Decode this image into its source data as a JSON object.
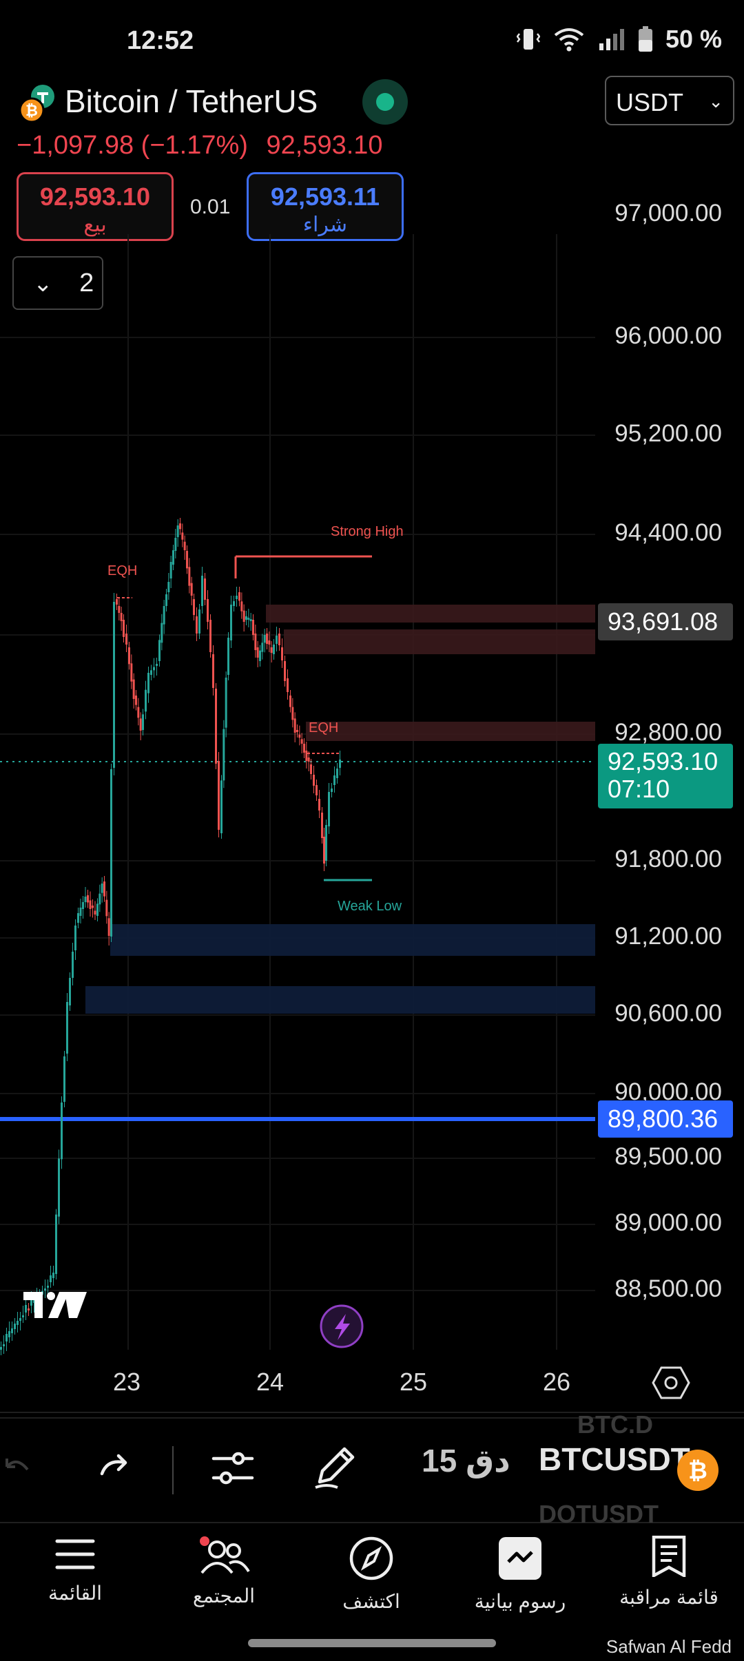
{
  "status_bar": {
    "time": "12:52",
    "battery": "50 %"
  },
  "header": {
    "pair": "Bitcoin / TetherUS",
    "change": "−1,097.98 (−1.17%)",
    "last_price": "92,593.10",
    "currency": "USDT"
  },
  "trade": {
    "sell_price": "92,593.10",
    "sell_label": "بيع",
    "spread": "0.01",
    "buy_price": "92,593.11",
    "buy_label": "شراء"
  },
  "indicators": {
    "count": "2"
  },
  "chart": {
    "price_axis": [
      "97,000.00",
      "96,000.00",
      "95,200.00",
      "94,400.00",
      "92,800.00",
      "91,800.00",
      "91,200.00",
      "90,600.00",
      "90,000.00",
      "89,500.00",
      "89,000.00",
      "88,500.00"
    ],
    "tags": {
      "zone_top": "93,691.08",
      "current": "92,593.10",
      "countdown": "07:10",
      "alert": "89,800.36"
    },
    "annotations": {
      "eqh_left": "EQH",
      "eqh_right": "EQH",
      "strong_high": "Strong High",
      "weak_low": "Weak Low"
    },
    "dates": [
      "23",
      "24",
      "25",
      "26"
    ]
  },
  "toolbar": {
    "interval": "15 دق",
    "symbol": "BTCUSDT",
    "ghost_top": "BTC.D",
    "ghost_bottom": "DOTUSDT"
  },
  "nav": {
    "menu": "القائمة",
    "community": "المجتمع",
    "explore": "اكتشف",
    "charts": "رسوم بيانية",
    "watchlist": "قائمة مراقبة"
  },
  "watermark": "Safwan Al Fedd",
  "colors": {
    "up": "#26a69a",
    "down": "#ef5350",
    "accent_blue": "#2962ff",
    "sell": "#e5454f",
    "buy": "#4b7dff"
  }
}
